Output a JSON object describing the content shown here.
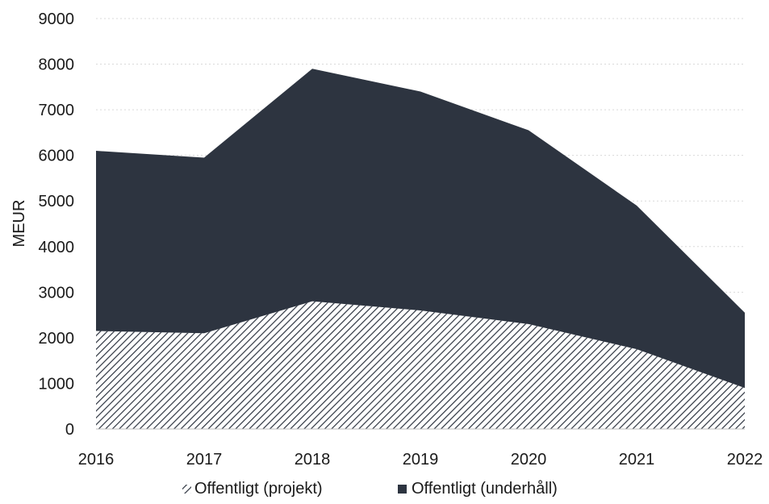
{
  "chart_data": {
    "type": "area",
    "stacked": true,
    "title": "",
    "xlabel": "",
    "ylabel": "MEUR",
    "x": [
      2016,
      2017,
      2018,
      2019,
      2020,
      2021,
      2022
    ],
    "ylim": [
      0,
      9000
    ],
    "yticks": [
      0,
      1000,
      2000,
      3000,
      4000,
      5000,
      6000,
      7000,
      8000,
      9000
    ],
    "grid": true,
    "legend_position": "bottom",
    "series": [
      {
        "name": "Offentligt (projekt)",
        "values": [
          2150,
          2100,
          2800,
          2600,
          2300,
          1750,
          900
        ],
        "color": "#ffffff",
        "pattern": "diagonal-hatch",
        "hatch_color": "#2d3440"
      },
      {
        "name": "Offentligt (underhåll)",
        "values": [
          3950,
          3850,
          5100,
          4800,
          4250,
          3150,
          1650
        ],
        "color": "#2d3440"
      }
    ]
  }
}
